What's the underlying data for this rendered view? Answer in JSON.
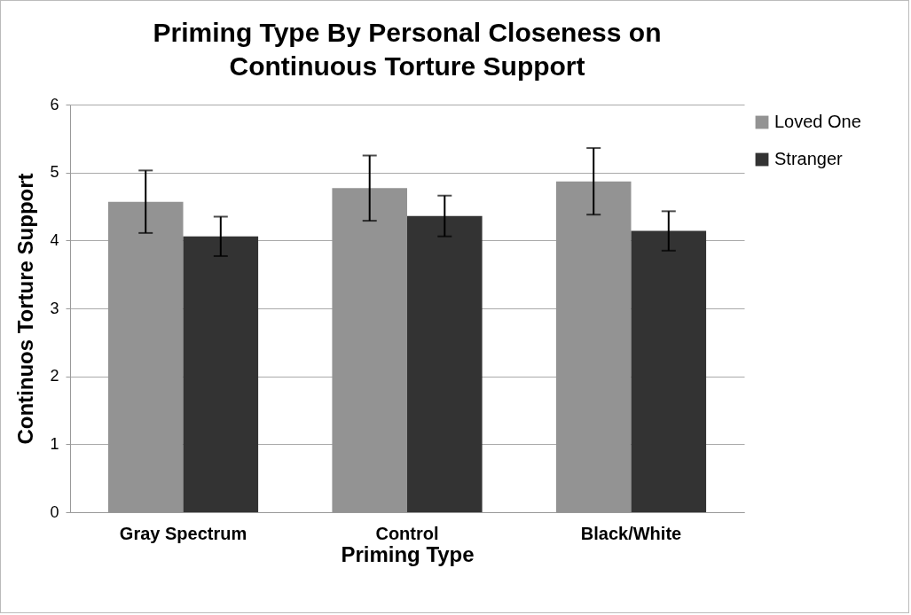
{
  "chart_data": {
    "type": "bar",
    "title": "Priming Type By Personal Closeness on Continuous Torture Support",
    "xlabel": "Priming Type",
    "ylabel": "Continuos Torture Support",
    "categories": [
      "Gray Spectrum",
      "Control",
      "Black/White"
    ],
    "series": [
      {
        "name": "Loved One",
        "color": "#939393",
        "values": [
          4.57,
          4.77,
          4.87
        ],
        "errors": [
          0.46,
          0.48,
          0.49
        ]
      },
      {
        "name": "Stranger",
        "color": "#333333",
        "values": [
          4.06,
          4.36,
          4.14
        ],
        "errors": [
          0.29,
          0.3,
          0.29
        ]
      }
    ],
    "ylim": [
      0,
      6
    ],
    "yticks": [
      0,
      1,
      2,
      3,
      4,
      5,
      6
    ],
    "grid": "y",
    "legend": "top right"
  }
}
